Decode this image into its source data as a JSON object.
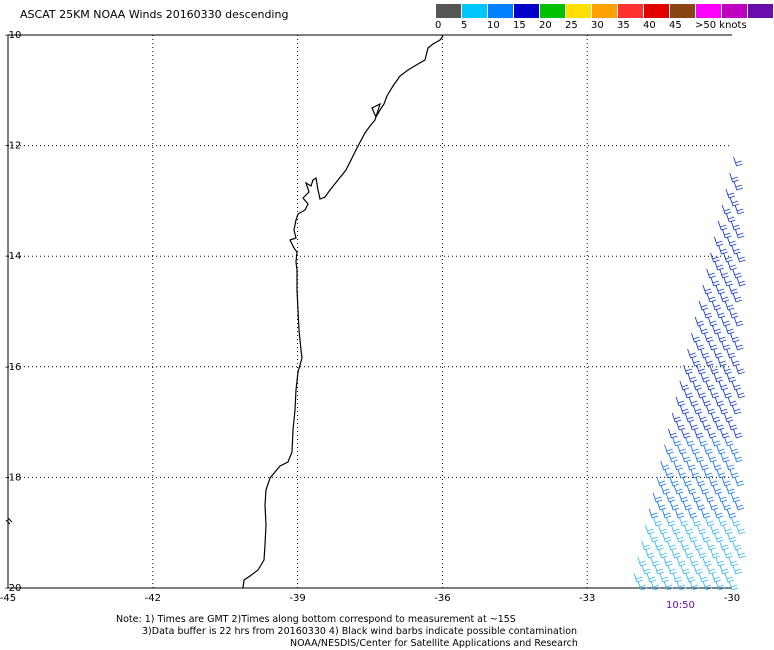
{
  "title": "ASCAT 25KM NOAA Winds 20160330 descending",
  "legend": {
    "colors": [
      "#555555",
      "#00c8ff",
      "#0080ff",
      "#0000c8",
      "#00c000",
      "#ffe000",
      "#ffa000",
      "#ff3030",
      "#e00000",
      "#8b4513",
      "#ff00ff",
      "#c000c0",
      "#6a0dad"
    ],
    "labels": [
      "0",
      "5",
      "10",
      "15",
      "20",
      "25",
      "30",
      "35",
      "40",
      "45",
      ">50 knots"
    ]
  },
  "axes": {
    "lon_ticks": [
      "-45",
      "-42",
      "-39",
      "-36",
      "-33",
      "-30"
    ],
    "lat_ticks": [
      "-10",
      "-12",
      "-14",
      "-16",
      "-18",
      "-20"
    ]
  },
  "time_label": "10:50",
  "footer": {
    "line1": "Note: 1) Times are GMT 2)Times along bottom correspond to measurement at ~15S",
    "line2": "3)Data buffer is 22 hrs from 20160330 4) Black wind barbs indicate possible contamination",
    "line3": "NOAA/NESDIS/Center for Satellite Applications and Research"
  },
  "barb_colors": {
    "light": "#3cb8f0",
    "mid": "#1e78e6",
    "dark": "#1a3fc8"
  }
}
